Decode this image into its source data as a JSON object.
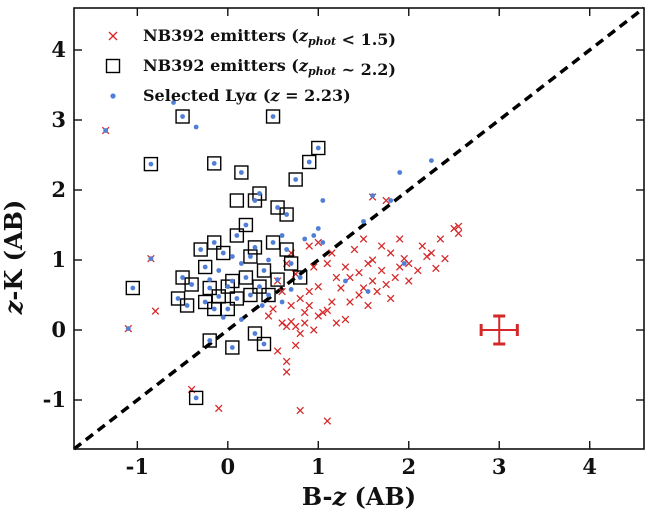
{
  "chart_data": {
    "type": "scatter",
    "xlabel": "B-z (AB)",
    "ylabel": "z-K (AB)",
    "xlim": [
      -1.7,
      4.6
    ],
    "ylim": [
      -1.7,
      4.6
    ],
    "xticks": [
      "-1",
      "0",
      "1",
      "2",
      "3",
      "4"
    ],
    "yticks": [
      "-1",
      "0",
      "1",
      "2",
      "3",
      "4"
    ],
    "legend_position": "top-left",
    "diagonal_line": {
      "style": "dashed",
      "color": "#000000",
      "from": [
        -1.7,
        -1.7
      ],
      "to": [
        4.6,
        4.6
      ]
    },
    "series": [
      {
        "name": "NB392 emitters (z_phot < 1.5)",
        "marker": "x",
        "color": "#d62728",
        "points": [
          [
            -1.35,
            2.85
          ],
          [
            -0.85,
            1.02
          ],
          [
            -1.1,
            0.02
          ],
          [
            -0.8,
            0.27
          ],
          [
            -0.4,
            -0.85
          ],
          [
            -0.1,
            -1.12
          ],
          [
            0.8,
            -1.15
          ],
          [
            1.1,
            -1.3
          ],
          [
            0.55,
            -0.3
          ],
          [
            0.65,
            -0.6
          ],
          [
            0.65,
            -0.45
          ],
          [
            0.75,
            -0.22
          ],
          [
            0.8,
            -0.05
          ],
          [
            0.6,
            0.1
          ],
          [
            0.7,
            0.12
          ],
          [
            0.85,
            0.25
          ],
          [
            0.9,
            0.35
          ],
          [
            1.0,
            0.2
          ],
          [
            1.05,
            0.25
          ],
          [
            1.1,
            0.28
          ],
          [
            1.2,
            0.1
          ],
          [
            1.3,
            0.15
          ],
          [
            1.35,
            0.4
          ],
          [
            1.45,
            0.5
          ],
          [
            1.5,
            0.6
          ],
          [
            1.55,
            0.35
          ],
          [
            1.6,
            0.7
          ],
          [
            1.65,
            0.55
          ],
          [
            1.7,
            0.85
          ],
          [
            1.75,
            0.65
          ],
          [
            1.8,
            0.45
          ],
          [
            1.85,
            0.75
          ],
          [
            1.9,
            0.9
          ],
          [
            1.95,
            1.02
          ],
          [
            2.0,
            0.95
          ],
          [
            2.1,
            0.85
          ],
          [
            2.15,
            1.2
          ],
          [
            2.2,
            1.05
          ],
          [
            2.3,
            0.88
          ],
          [
            2.35,
            1.3
          ],
          [
            2.4,
            1.02
          ],
          [
            2.5,
            1.45
          ],
          [
            2.55,
            1.38
          ],
          [
            2.55,
            1.48
          ],
          [
            1.3,
            0.9
          ],
          [
            1.2,
            0.75
          ],
          [
            1.1,
            0.95
          ],
          [
            1.0,
            0.62
          ],
          [
            0.9,
            0.55
          ],
          [
            0.8,
            0.45
          ],
          [
            0.7,
            0.35
          ],
          [
            0.6,
            0.55
          ],
          [
            0.5,
            0.3
          ],
          [
            0.45,
            0.2
          ],
          [
            0.55,
            0.7
          ],
          [
            0.75,
            0.8
          ],
          [
            0.95,
            0.9
          ],
          [
            1.15,
            1.1
          ],
          [
            1.4,
            1.15
          ],
          [
            1.5,
            1.3
          ],
          [
            1.6,
            1.0
          ],
          [
            1.7,
            1.2
          ],
          [
            1.8,
            1.1
          ],
          [
            1.9,
            1.3
          ],
          [
            1.6,
            1.9
          ],
          [
            1.75,
            1.85
          ],
          [
            1.0,
            1.25
          ],
          [
            0.9,
            1.2
          ],
          [
            0.7,
            1.1
          ],
          [
            0.65,
            0.95
          ],
          [
            0.85,
            0.1
          ],
          [
            0.75,
            0.05
          ],
          [
            0.65,
            0.05
          ],
          [
            0.95,
            0.0
          ],
          [
            1.15,
            0.4
          ],
          [
            1.25,
            0.6
          ],
          [
            1.35,
            0.75
          ],
          [
            1.45,
            0.82
          ],
          [
            2.0,
            0.7
          ],
          [
            2.25,
            1.1
          ],
          [
            1.55,
            0.95
          ]
        ]
      },
      {
        "name": "NB392 emitters (z_phot ~ 2.2)",
        "marker": "square",
        "color": "#000000",
        "points": [
          [
            -0.5,
            3.05
          ],
          [
            0.5,
            3.05
          ],
          [
            1.0,
            2.6
          ],
          [
            0.9,
            2.4
          ],
          [
            -0.85,
            2.37
          ],
          [
            -0.15,
            2.38
          ],
          [
            0.15,
            2.25
          ],
          [
            0.75,
            2.15
          ],
          [
            0.3,
            1.85
          ],
          [
            0.35,
            1.95
          ],
          [
            0.55,
            1.75
          ],
          [
            0.65,
            1.65
          ],
          [
            0.2,
            1.5
          ],
          [
            0.1,
            1.35
          ],
          [
            -0.15,
            1.25
          ],
          [
            -0.05,
            1.1
          ],
          [
            0.25,
            1.05
          ],
          [
            0.5,
            1.25
          ],
          [
            0.65,
            1.15
          ],
          [
            0.7,
            0.95
          ],
          [
            0.3,
            1.18
          ],
          [
            0.4,
            0.85
          ],
          [
            -0.3,
            1.15
          ],
          [
            -0.25,
            0.9
          ],
          [
            -0.5,
            0.75
          ],
          [
            -0.4,
            0.65
          ],
          [
            -0.2,
            0.6
          ],
          [
            -0.1,
            0.48
          ],
          [
            0.0,
            0.62
          ],
          [
            0.05,
            0.7
          ],
          [
            0.1,
            0.45
          ],
          [
            0.2,
            0.75
          ],
          [
            0.25,
            0.5
          ],
          [
            0.35,
            0.62
          ],
          [
            0.45,
            0.5
          ],
          [
            0.55,
            0.72
          ],
          [
            -0.55,
            0.45
          ],
          [
            -0.45,
            0.35
          ],
          [
            -0.25,
            0.4
          ],
          [
            -0.15,
            0.3
          ],
          [
            0.0,
            0.3
          ],
          [
            -1.05,
            0.6
          ],
          [
            -0.2,
            -0.15
          ],
          [
            0.05,
            -0.25
          ],
          [
            0.4,
            -0.2
          ],
          [
            0.3,
            -0.05
          ],
          [
            -0.35,
            -0.97
          ],
          [
            0.1,
            1.85
          ],
          [
            0.8,
            0.75
          ]
        ]
      },
      {
        "name": "Selected Lyα (z = 2.23)",
        "marker": "dot",
        "color": "#4f7fd6",
        "points": [
          [
            -0.6,
            3.25
          ],
          [
            -0.35,
            2.9
          ],
          [
            -0.5,
            3.05
          ],
          [
            0.5,
            3.05
          ],
          [
            1.0,
            2.6
          ],
          [
            0.9,
            2.4
          ],
          [
            -0.85,
            2.37
          ],
          [
            -0.15,
            2.38
          ],
          [
            0.15,
            2.25
          ],
          [
            0.75,
            2.15
          ],
          [
            1.9,
            2.25
          ],
          [
            2.25,
            2.42
          ],
          [
            1.05,
            1.85
          ],
          [
            1.5,
            1.55
          ],
          [
            1.6,
            1.92
          ],
          [
            1.8,
            1.85
          ],
          [
            1.0,
            1.45
          ],
          [
            0.3,
            1.85
          ],
          [
            0.35,
            1.95
          ],
          [
            0.55,
            1.75
          ],
          [
            0.65,
            1.65
          ],
          [
            0.2,
            1.5
          ],
          [
            0.1,
            1.35
          ],
          [
            -0.15,
            1.25
          ],
          [
            -0.05,
            1.1
          ],
          [
            0.25,
            1.05
          ],
          [
            0.5,
            1.25
          ],
          [
            0.65,
            1.15
          ],
          [
            0.7,
            0.95
          ],
          [
            0.3,
            1.18
          ],
          [
            0.4,
            0.85
          ],
          [
            -0.3,
            1.15
          ],
          [
            -0.25,
            0.9
          ],
          [
            -0.5,
            0.75
          ],
          [
            -0.4,
            0.65
          ],
          [
            -0.2,
            0.6
          ],
          [
            -0.1,
            0.48
          ],
          [
            0.0,
            0.62
          ],
          [
            0.05,
            0.7
          ],
          [
            0.1,
            0.45
          ],
          [
            0.2,
            0.75
          ],
          [
            0.25,
            0.5
          ],
          [
            0.35,
            0.62
          ],
          [
            0.45,
            0.5
          ],
          [
            0.55,
            0.72
          ],
          [
            -0.55,
            0.45
          ],
          [
            -0.45,
            0.35
          ],
          [
            -0.25,
            0.4
          ],
          [
            -0.15,
            0.3
          ],
          [
            0.0,
            0.3
          ],
          [
            -1.05,
            0.6
          ],
          [
            -0.2,
            -0.15
          ],
          [
            0.05,
            -0.25
          ],
          [
            0.4,
            -0.2
          ],
          [
            0.3,
            -0.05
          ],
          [
            -0.35,
            -0.97
          ],
          [
            -0.85,
            1.02
          ],
          [
            -1.35,
            2.85
          ],
          [
            -1.1,
            0.02
          ],
          [
            0.85,
            1.3
          ],
          [
            0.95,
            1.35
          ],
          [
            1.05,
            1.25
          ],
          [
            0.6,
            1.35
          ],
          [
            0.15,
            0.95
          ],
          [
            -0.1,
            0.85
          ],
          [
            0.45,
            1.0
          ],
          [
            0.6,
            0.4
          ],
          [
            0.7,
            0.58
          ],
          [
            0.15,
            0.15
          ],
          [
            -0.05,
            0.18
          ],
          [
            1.95,
            0.95
          ],
          [
            1.55,
            0.55
          ],
          [
            1.3,
            0.7
          ],
          [
            0.8,
            0.75
          ],
          [
            0.05,
            1.05
          ],
          [
            -0.2,
            0.72
          ],
          [
            0.38,
            0.35
          ]
        ]
      }
    ],
    "error_bar": {
      "x": 3.0,
      "y": 0.0,
      "xerr": 0.2,
      "yerr": 0.2,
      "color": "#d62728"
    }
  }
}
